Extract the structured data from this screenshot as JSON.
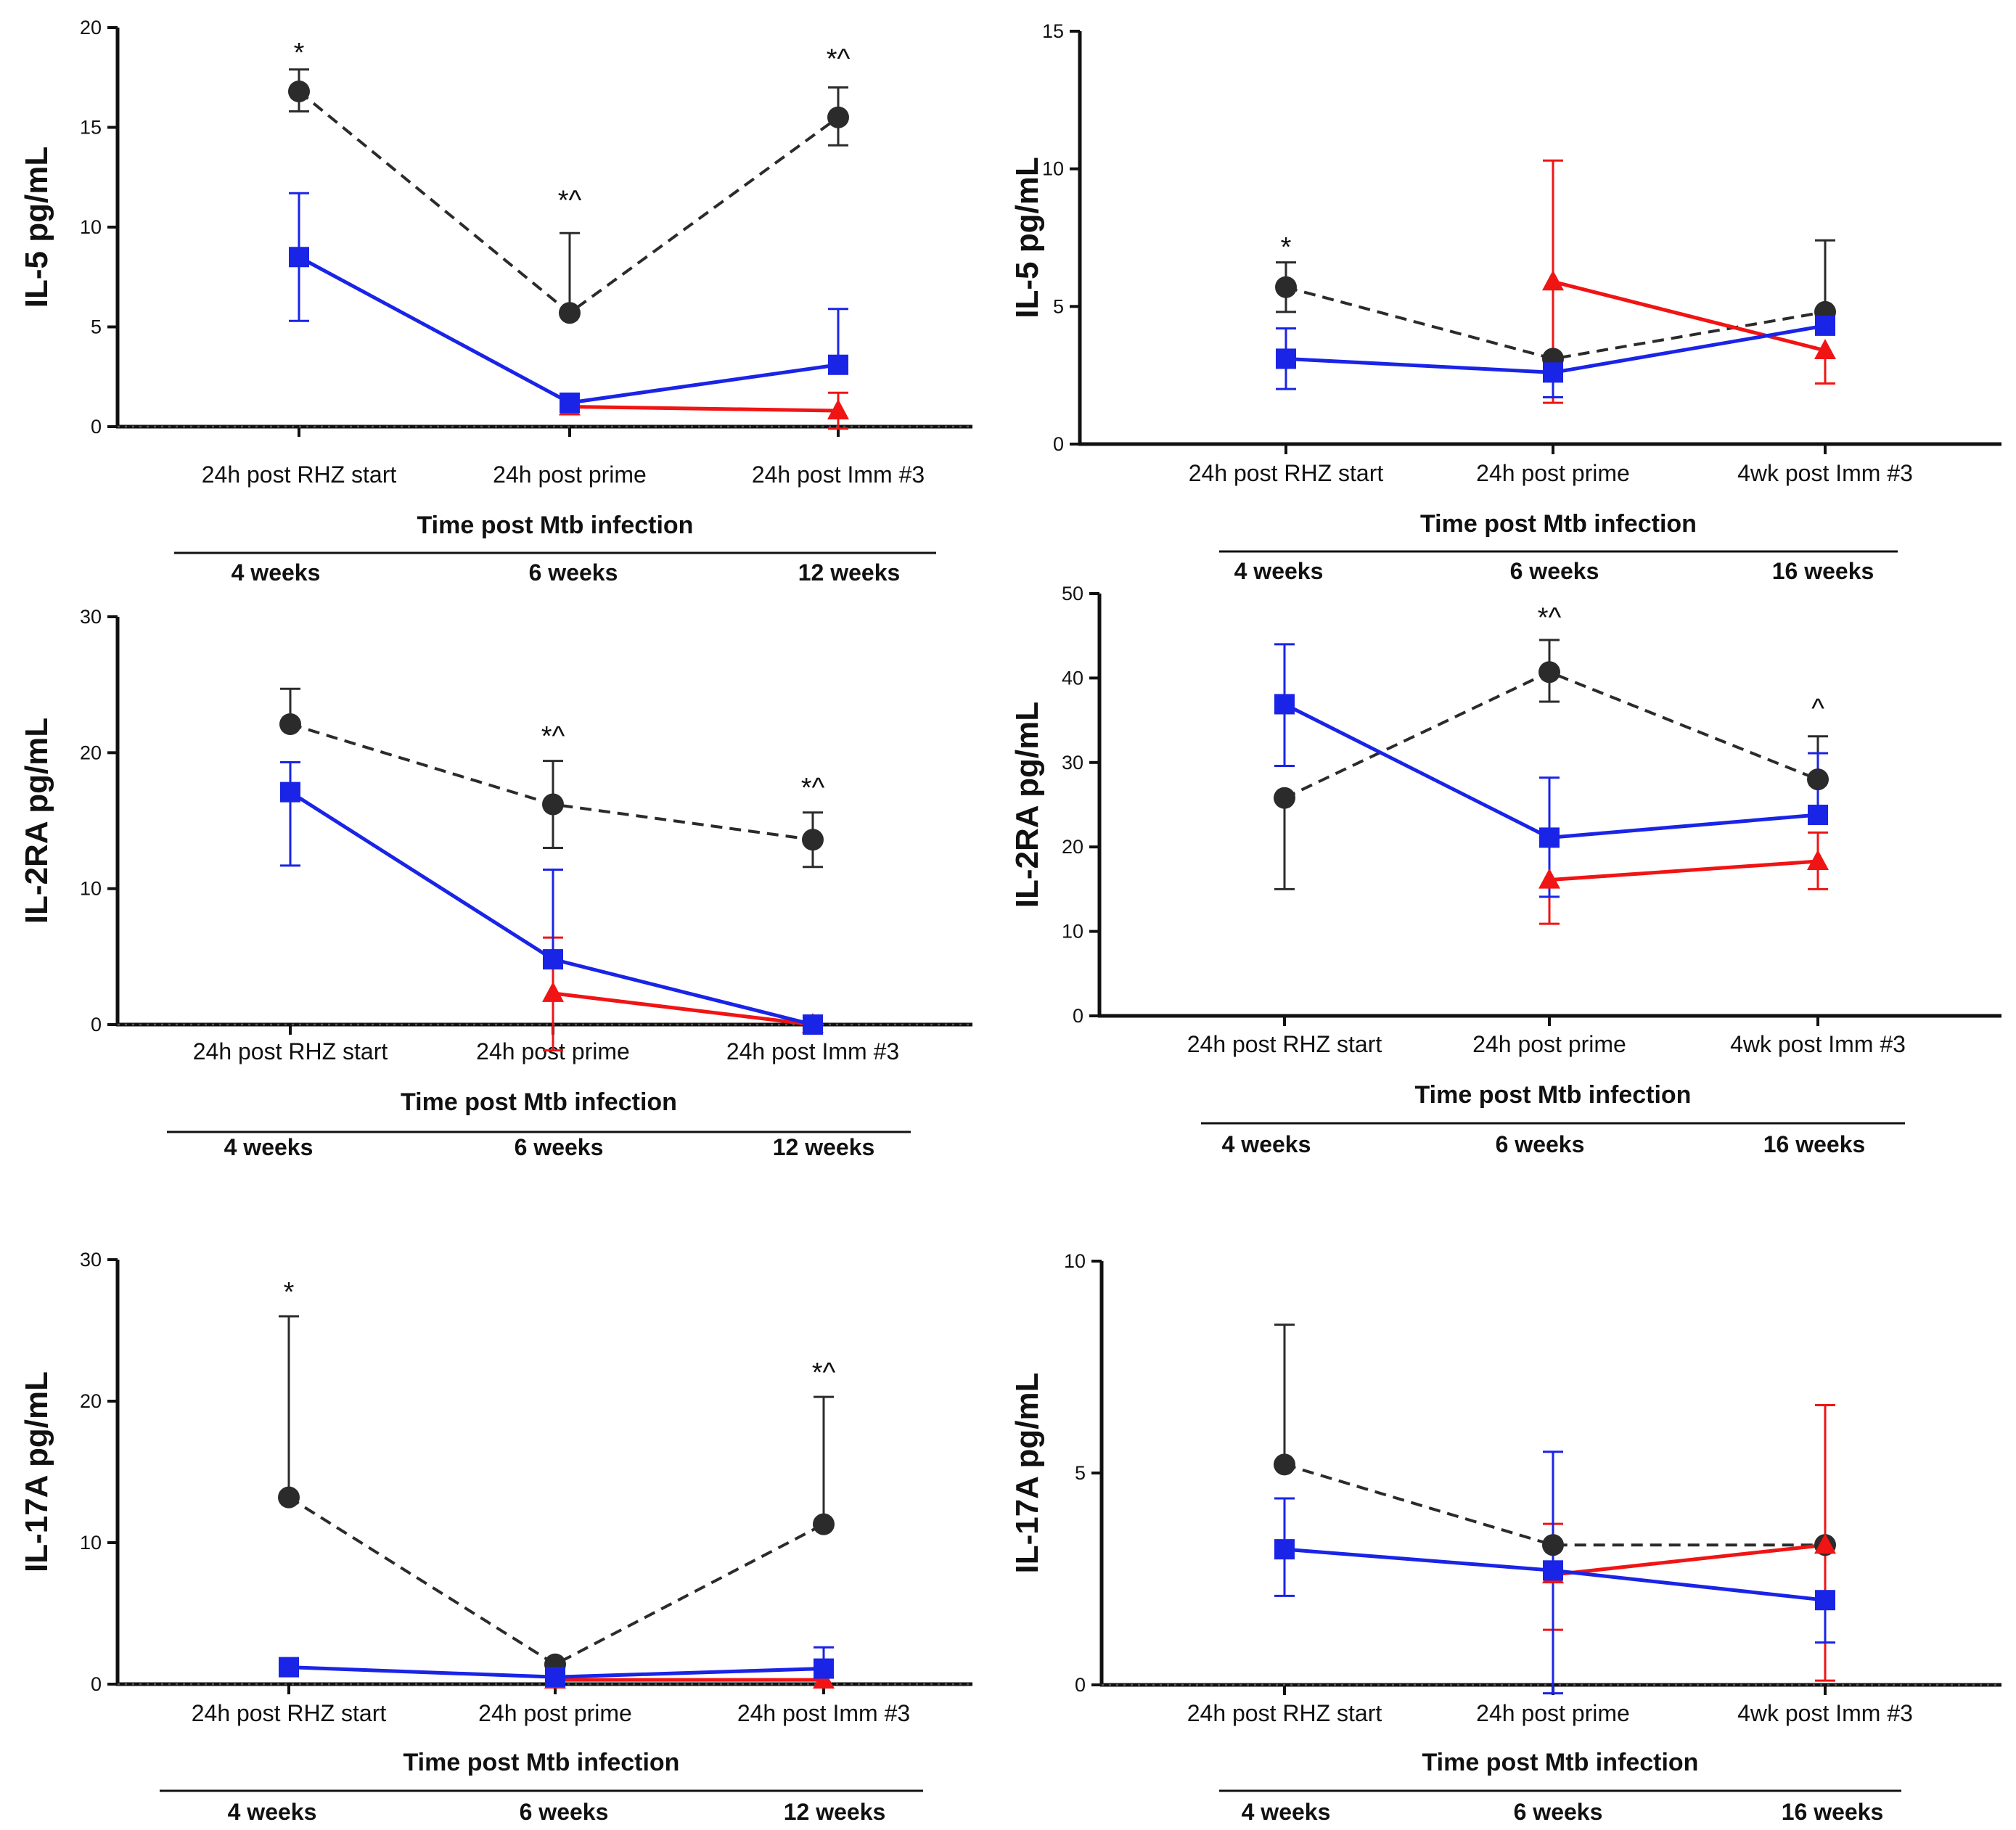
{
  "colors": {
    "black_series": "#2b2b2b",
    "blue_series": "#1a24e6",
    "red_series": "#f01414"
  },
  "chart_data": [
    {
      "type": "line",
      "title": "",
      "ylabel": "IL-5 pg/mL",
      "xlabel": "Time post Mtb infection",
      "ylim": [
        0,
        20
      ],
      "yticks": [
        0,
        5,
        10,
        15,
        20
      ],
      "categories": [
        "24h post RHZ start",
        "24h post prime",
        "24h post Imm #3"
      ],
      "weeks": [
        "4 weeks",
        "6 weeks",
        "12 weeks"
      ],
      "zero_line": true,
      "annotations": [
        {
          "category": 0,
          "text": "*",
          "y": 18.8
        },
        {
          "category": 1,
          "text": "*^",
          "y": 11.4
        },
        {
          "category": 2,
          "text": "*^",
          "y": 18.5
        }
      ],
      "series": [
        {
          "name": "black",
          "style": "dashed",
          "marker": "circle",
          "x": [
            0,
            1,
            2
          ],
          "values": [
            16.8,
            5.7,
            15.5
          ],
          "err_hi": [
            17.9,
            9.7,
            17.0
          ],
          "err_lo": [
            15.8,
            null,
            14.1
          ]
        },
        {
          "name": "blue",
          "style": "solid",
          "marker": "square",
          "x": [
            0,
            1,
            2
          ],
          "values": [
            8.5,
            1.2,
            3.1
          ],
          "err_hi": [
            11.7,
            null,
            5.9
          ],
          "err_lo": [
            5.3,
            null,
            null
          ]
        },
        {
          "name": "red",
          "style": "solid",
          "marker": "triangle",
          "x": [
            1,
            2
          ],
          "values": [
            1.0,
            0.8
          ],
          "err_hi": [
            null,
            1.7
          ],
          "err_lo": [
            null,
            -0.1
          ]
        }
      ]
    },
    {
      "type": "line",
      "title": "",
      "ylabel": "IL-5 pg/mL",
      "xlabel": "Time post Mtb infection",
      "ylim": [
        0,
        15
      ],
      "yticks": [
        0,
        5,
        10,
        15
      ],
      "categories": [
        "24h post RHZ start",
        "24h post prime",
        "4wk post Imm #3"
      ],
      "weeks": [
        "4 weeks",
        "6 weeks",
        "16 weeks"
      ],
      "zero_line": false,
      "annotations": [
        {
          "category": 0,
          "text": "*",
          "y": 7.2
        }
      ],
      "series": [
        {
          "name": "black",
          "style": "dashed",
          "marker": "circle",
          "x": [
            0,
            1,
            2
          ],
          "values": [
            5.7,
            3.1,
            4.8
          ],
          "err_hi": [
            6.6,
            null,
            7.4
          ],
          "err_lo": [
            4.8,
            null,
            null
          ]
        },
        {
          "name": "blue",
          "style": "solid",
          "marker": "square",
          "x": [
            0,
            1,
            2
          ],
          "values": [
            3.1,
            2.6,
            4.3
          ],
          "err_hi": [
            4.2,
            null,
            null
          ],
          "err_lo": [
            2.0,
            1.7,
            null
          ]
        },
        {
          "name": "red",
          "style": "solid",
          "marker": "triangle",
          "x": [
            1,
            2
          ],
          "values": [
            5.9,
            3.4
          ],
          "err_hi": [
            10.3,
            null
          ],
          "err_lo": [
            1.5,
            2.2
          ]
        }
      ]
    },
    {
      "type": "line",
      "title": "",
      "ylabel": "IL-2RA pg/mL",
      "xlabel": "Time post Mtb infection",
      "ylim": [
        0,
        30
      ],
      "yticks": [
        0,
        10,
        20,
        30
      ],
      "categories": [
        "24h post RHZ start",
        "24h post prime",
        "24h post Imm #3"
      ],
      "weeks": [
        "4 weeks",
        "6 weeks",
        "12 weeks"
      ],
      "zero_line": true,
      "annotations": [
        {
          "category": 1,
          "text": "*^",
          "y": 21.3
        },
        {
          "category": 2,
          "text": "*^",
          "y": 17.5
        }
      ],
      "series": [
        {
          "name": "black",
          "style": "dashed",
          "marker": "circle",
          "x": [
            0,
            1,
            2
          ],
          "values": [
            22.1,
            16.2,
            13.6
          ],
          "err_hi": [
            24.7,
            19.4,
            15.6
          ],
          "err_lo": [
            null,
            13.0,
            11.6
          ]
        },
        {
          "name": "blue",
          "style": "solid",
          "marker": "square",
          "x": [
            0,
            1,
            2
          ],
          "values": [
            17.1,
            4.8,
            0.0
          ],
          "err_hi": [
            19.3,
            11.4,
            null
          ],
          "err_lo": [
            11.7,
            null,
            null
          ]
        },
        {
          "name": "red",
          "style": "solid",
          "marker": "triangle",
          "x": [
            1,
            2
          ],
          "values": [
            2.3,
            0.0
          ],
          "err_hi": [
            6.4,
            null
          ],
          "err_lo": [
            -1.9,
            null
          ]
        }
      ]
    },
    {
      "type": "line",
      "title": "",
      "ylabel": "IL-2RA pg/mL",
      "xlabel": "Time post Mtb infection",
      "ylim": [
        0,
        50
      ],
      "yticks": [
        0,
        10,
        20,
        30,
        40,
        50
      ],
      "categories": [
        "24h post RHZ start",
        "24h post prime",
        "4wk post Imm #3"
      ],
      "weeks": [
        "4 weeks",
        "6 weeks",
        "16 weeks"
      ],
      "zero_line": false,
      "annotations": [
        {
          "category": 1,
          "text": "*^",
          "y": 47.3
        },
        {
          "category": 2,
          "text": "^",
          "y": 36.5
        }
      ],
      "series": [
        {
          "name": "black",
          "style": "dashed",
          "marker": "circle",
          "x": [
            0,
            1,
            2
          ],
          "values": [
            25.8,
            40.7,
            28.0
          ],
          "err_hi": [
            null,
            44.5,
            33.1
          ],
          "err_lo": [
            15.0,
            37.2,
            null
          ]
        },
        {
          "name": "blue",
          "style": "solid",
          "marker": "square",
          "x": [
            0,
            1,
            2
          ],
          "values": [
            36.9,
            21.1,
            23.8
          ],
          "err_hi": [
            44.0,
            28.2,
            31.1
          ],
          "err_lo": [
            29.6,
            14.1,
            null
          ]
        },
        {
          "name": "red",
          "style": "solid",
          "marker": "triangle",
          "x": [
            1,
            2
          ],
          "values": [
            16.1,
            18.3
          ],
          "err_hi": [
            null,
            21.7
          ],
          "err_lo": [
            10.9,
            15.0
          ]
        }
      ]
    },
    {
      "type": "line",
      "title": "",
      "ylabel": "IL-17A pg/mL",
      "xlabel": "Time post Mtb infection",
      "ylim": [
        0,
        30
      ],
      "yticks": [
        0,
        10,
        20,
        30
      ],
      "categories": [
        "24h post RHZ start",
        "24h post prime",
        "24h post Imm #3"
      ],
      "weeks": [
        "4 weeks",
        "6 weeks",
        "12 weeks"
      ],
      "zero_line": true,
      "annotations": [
        {
          "category": 0,
          "text": "*",
          "y": 27.8
        },
        {
          "category": 2,
          "text": "*^",
          "y": 22.1
        }
      ],
      "series": [
        {
          "name": "black",
          "style": "dashed",
          "marker": "circle",
          "x": [
            0,
            1,
            2
          ],
          "values": [
            13.2,
            1.4,
            11.3
          ],
          "err_hi": [
            26.0,
            null,
            20.3
          ],
          "err_lo": [
            null,
            null,
            null
          ]
        },
        {
          "name": "blue",
          "style": "solid",
          "marker": "square",
          "x": [
            0,
            1,
            2
          ],
          "values": [
            1.2,
            0.5,
            1.1
          ],
          "err_hi": [
            null,
            null,
            2.6
          ],
          "err_lo": [
            null,
            null,
            null
          ]
        },
        {
          "name": "red",
          "style": "solid",
          "marker": "triangle",
          "x": [
            1,
            2
          ],
          "values": [
            0.3,
            0.3
          ],
          "err_hi": [
            null,
            null
          ],
          "err_lo": [
            null,
            null
          ]
        }
      ]
    },
    {
      "type": "line",
      "title": "",
      "ylabel": "IL-17A pg/mL",
      "xlabel": "Time post Mtb infection",
      "ylim": [
        0,
        10
      ],
      "yticks": [
        0,
        5,
        10
      ],
      "categories": [
        "24h post RHZ start",
        "24h post prime",
        "4wk post Imm #3"
      ],
      "weeks": [
        "4 weeks",
        "6 weeks",
        "16 weeks"
      ],
      "zero_line": true,
      "annotations": [],
      "series": [
        {
          "name": "black",
          "style": "dashed",
          "marker": "circle",
          "x": [
            0,
            1,
            2
          ],
          "values": [
            5.2,
            3.3,
            3.3
          ],
          "err_hi": [
            8.5,
            null,
            null
          ],
          "err_lo": [
            null,
            null,
            null
          ]
        },
        {
          "name": "blue",
          "style": "solid",
          "marker": "square",
          "x": [
            0,
            1,
            2
          ],
          "values": [
            3.2,
            2.7,
            2.0
          ],
          "err_hi": [
            4.4,
            5.5,
            null
          ],
          "err_lo": [
            2.1,
            -0.2,
            1.0
          ]
        },
        {
          "name": "red",
          "style": "solid",
          "marker": "triangle",
          "x": [
            1,
            2
          ],
          "values": [
            2.6,
            3.3
          ],
          "err_hi": [
            3.8,
            6.6
          ],
          "err_lo": [
            1.3,
            0.1
          ]
        }
      ]
    }
  ]
}
